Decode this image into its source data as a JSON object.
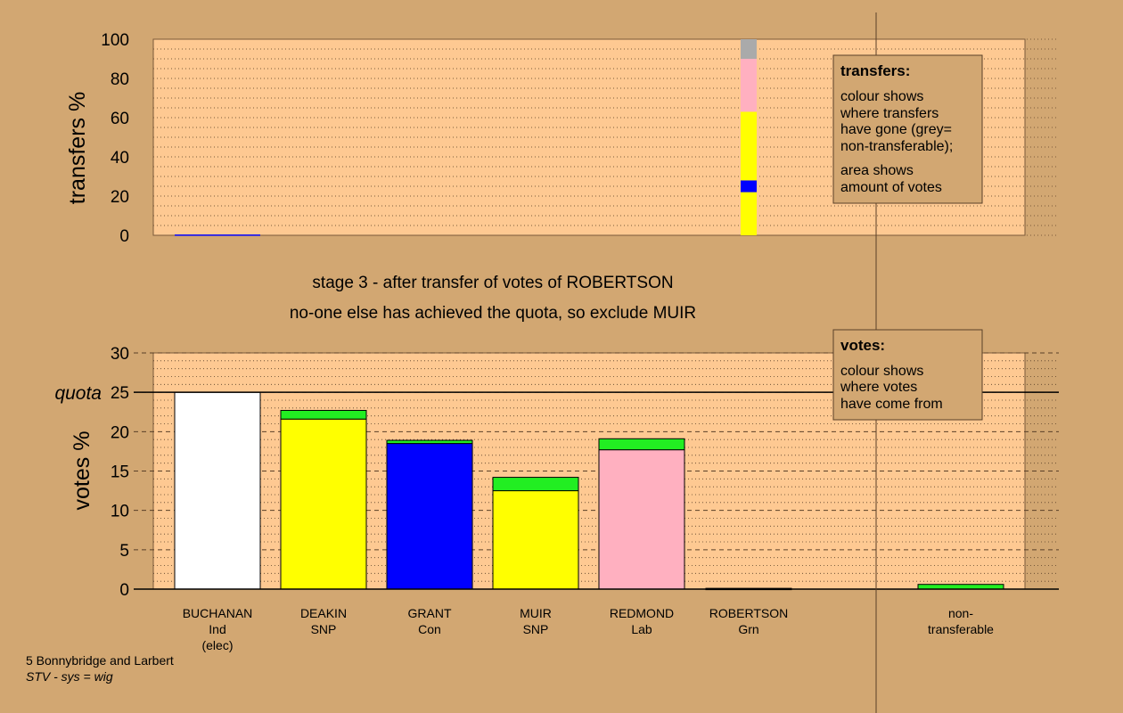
{
  "colors": {
    "background": "#d2a772",
    "plot_bg": "#fec992",
    "white": "#ffffff",
    "yellow": "#ffff00",
    "blue": "#0000ff",
    "pink": "#ffb0c0",
    "green": "#22ee22",
    "grey": "#aaaaaa"
  },
  "caption": {
    "line1": "stage 3 - after transfer of votes of ROBERTSON",
    "line2": "no-one else has achieved the quota, so exclude MUIR"
  },
  "footer": {
    "line1": "5 Bonnybridge and Larbert",
    "line2": "STV - sys = wig"
  },
  "legend_transfers": {
    "title": "transfers:",
    "lines1": [
      "colour shows",
      "where transfers",
      "have gone (grey=",
      "non-transferable);"
    ],
    "lines2": [
      "area shows",
      "amount of votes"
    ]
  },
  "legend_votes": {
    "title": "votes:",
    "lines": [
      "colour shows",
      "where votes",
      "have come from"
    ]
  },
  "chart_data": [
    {
      "type": "bar",
      "name": "transfers",
      "ylabel": "transfers %",
      "ylim": [
        0,
        100
      ],
      "yticks": [
        0,
        20,
        40,
        60,
        80,
        100
      ],
      "bars": [
        {
          "category": "BUCHANAN",
          "segments": [
            {
              "color": "blue",
              "value": 0.4
            }
          ]
        },
        {
          "category": "ROBERTSON",
          "segments": [
            {
              "color": "yellow",
              "value": 22
            },
            {
              "color": "blue",
              "value": 6
            },
            {
              "color": "yellow",
              "value": 35
            },
            {
              "color": "pink",
              "value": 27
            },
            {
              "color": "grey",
              "value": 10
            }
          ]
        }
      ]
    },
    {
      "type": "bar",
      "name": "votes",
      "ylabel": "votes %",
      "ylim": [
        0,
        30
      ],
      "yticks": [
        0,
        5,
        10,
        15,
        20,
        25,
        30
      ],
      "quota": 25,
      "quota_label": "quota",
      "categories": [
        {
          "name": "BUCHANAN",
          "party": "Ind",
          "extra": "(elec)"
        },
        {
          "name": "DEAKIN",
          "party": "SNP",
          "extra": ""
        },
        {
          "name": "GRANT",
          "party": "Con",
          "extra": ""
        },
        {
          "name": "MUIR",
          "party": "SNP",
          "extra": ""
        },
        {
          "name": "REDMOND",
          "party": "Lab",
          "extra": ""
        },
        {
          "name": "ROBERTSON",
          "party": "Grn",
          "extra": ""
        },
        {
          "name": "non-",
          "party": "transferable",
          "extra": ""
        }
      ],
      "bars": [
        {
          "category": "BUCHANAN",
          "segments": [
            {
              "color": "white",
              "value": 25
            }
          ]
        },
        {
          "category": "DEAKIN",
          "segments": [
            {
              "color": "yellow",
              "value": 21.6
            },
            {
              "color": "green",
              "value": 1.1
            }
          ]
        },
        {
          "category": "GRANT",
          "segments": [
            {
              "color": "blue",
              "value": 18.5
            },
            {
              "color": "green",
              "value": 0.4
            }
          ]
        },
        {
          "category": "MUIR",
          "segments": [
            {
              "color": "yellow",
              "value": 12.5
            },
            {
              "color": "green",
              "value": 1.7
            }
          ]
        },
        {
          "category": "REDMOND",
          "segments": [
            {
              "color": "pink",
              "value": 17.7
            },
            {
              "color": "green",
              "value": 1.4
            }
          ]
        },
        {
          "category": "ROBERTSON",
          "segments": [
            {
              "color": "green",
              "value": 0.1
            }
          ]
        },
        {
          "category": "non-transferable",
          "segments": [
            {
              "color": "green",
              "value": 0.6
            }
          ]
        }
      ]
    }
  ]
}
